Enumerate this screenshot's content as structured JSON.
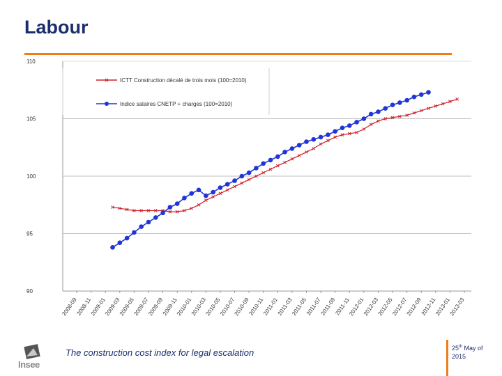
{
  "page": {
    "title": "Labour",
    "footer_caption": "The construction cost index for legal escalation",
    "footer_date_day": "25",
    "footer_date_suffix": "th",
    "footer_date_rest": " May of 2015",
    "logo_text": "Insee"
  },
  "colors": {
    "title": "#1a2e6e",
    "accent_rule": "#f07c16",
    "series_red": "#d0202a",
    "series_blue": "#1f35d6",
    "grid": "#bfbfbf"
  },
  "chart_data": {
    "type": "line",
    "title": "",
    "xlabel": "",
    "ylabel": "",
    "ylim": [
      90,
      110
    ],
    "yticks": [
      90,
      95,
      100,
      105,
      110
    ],
    "grid": true,
    "legend_position": "top-left",
    "x_tick_labels": [
      "2008-09",
      "2008-11",
      "2009-01",
      "2009-03",
      "2009-05",
      "2009-07",
      "2009-09",
      "2009-11",
      "2010-01",
      "2010-03",
      "2010-05",
      "2010-07",
      "2010-09",
      "2010-11",
      "2011-01",
      "2011-03",
      "2011-05",
      "2011-07",
      "2011-09",
      "2011-11",
      "2012-01",
      "2012-03",
      "2012-05",
      "2012-07",
      "2012-09",
      "2012-11",
      "2013-01",
      "2013-03"
    ],
    "series": [
      {
        "name": "ICTT Construction décalé de trois mois (100=2010)",
        "color": "#d0202a",
        "marker": "x",
        "start_index": 5,
        "values": [
          97.3,
          97.2,
          97.1,
          97.0,
          97.0,
          97.0,
          97.0,
          97.0,
          96.9,
          96.9,
          97.0,
          97.2,
          97.5,
          97.9,
          98.2,
          98.5,
          98.8,
          99.1,
          99.4,
          99.7,
          100.0,
          100.3,
          100.6,
          100.9,
          101.2,
          101.5,
          101.8,
          102.1,
          102.4,
          102.8,
          103.1,
          103.4,
          103.6,
          103.7,
          103.8,
          104.1,
          104.5,
          104.8,
          105.0,
          105.1,
          105.2,
          105.3,
          105.5,
          105.7,
          105.9,
          106.1,
          106.3,
          106.5,
          106.7
        ]
      },
      {
        "name": "Indice salaires CNETP + charges (100=2010)",
        "color": "#1f35d6",
        "marker": "circle",
        "start_index": 5,
        "values": [
          93.8,
          94.2,
          94.6,
          95.1,
          95.6,
          96.0,
          96.4,
          96.8,
          97.3,
          97.6,
          98.1,
          98.5,
          98.8,
          98.3,
          98.6,
          99.0,
          99.3,
          99.6,
          100.0,
          100.3,
          100.7,
          101.1,
          101.4,
          101.7,
          102.1,
          102.4,
          102.7,
          103.0,
          103.2,
          103.4,
          103.6,
          103.9,
          104.2,
          104.4,
          104.7,
          105.0,
          105.4,
          105.6,
          105.9,
          106.2,
          106.4,
          106.6,
          106.9,
          107.1,
          107.3
        ]
      }
    ]
  }
}
